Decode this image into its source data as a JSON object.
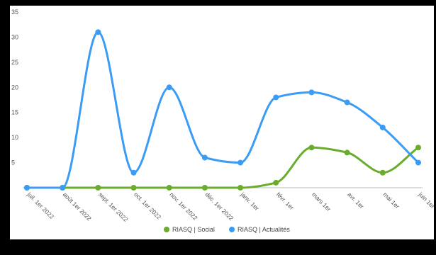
{
  "chart_data": {
    "type": "line",
    "title": "",
    "xlabel": "",
    "ylabel": "",
    "ylim": [
      0,
      35
    ],
    "y_ticks": [
      "5",
      "10",
      "15",
      "20",
      "25",
      "30",
      "35"
    ],
    "grid": false,
    "legend_placement": "bottom-center",
    "categories": [
      "juil. 1er 2022",
      "août 1er 2022",
      "sept. 1er 2022",
      "oct. 1er 2022",
      "nov. 1er 2022",
      "déc. 1er 2022",
      "janv. 1er",
      "févr. 1er",
      "mars 1er",
      "avr. 1er",
      "mai 1er",
      "juin 1er"
    ],
    "series": [
      {
        "name": "RIASQ | Social",
        "color": "#6aac2b",
        "values": [
          0,
          0,
          0,
          0,
          0,
          0,
          0,
          1,
          8,
          7,
          3,
          8
        ]
      },
      {
        "name": "RIASQ | Actualités",
        "color": "#3b9cf5",
        "values": [
          0,
          0,
          31,
          3,
          20,
          6,
          5,
          18,
          19,
          17,
          12,
          5
        ]
      }
    ]
  }
}
